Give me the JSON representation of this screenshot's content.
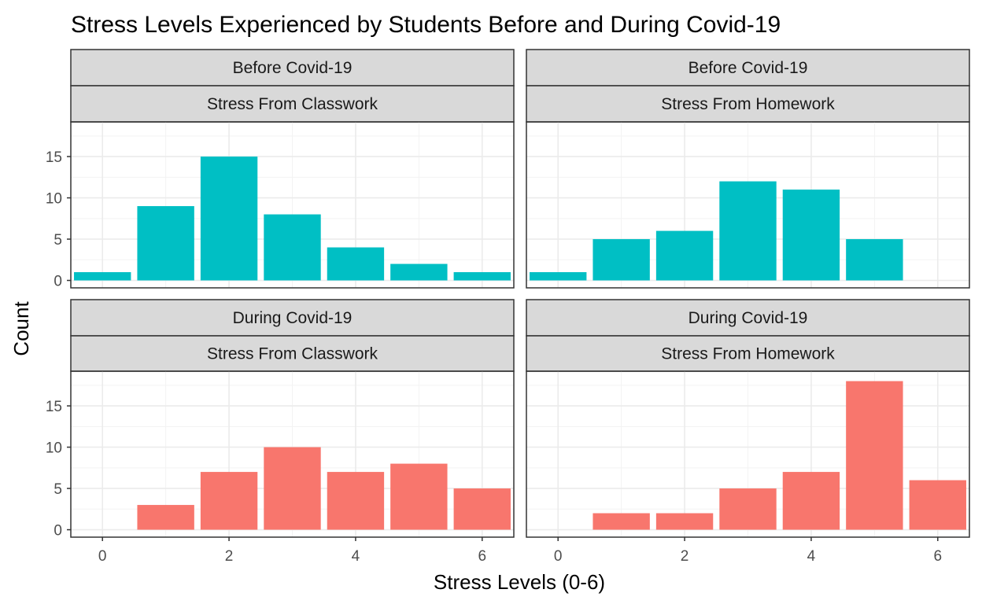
{
  "chart_data": {
    "type": "bar",
    "title": "Stress Levels Experienced by Students Before and During Covid-19",
    "xlabel": "Stress Levels (0-6)",
    "ylabel": "Count",
    "x_ticks": [
      0,
      2,
      4,
      6
    ],
    "y_ticks": [
      0,
      5,
      10,
      15
    ],
    "xlim": [
      -0.5,
      6.5
    ],
    "ylim": [
      0,
      18
    ],
    "grid": true,
    "legend": "none",
    "categories": [
      0,
      1,
      2,
      3,
      4,
      5,
      6
    ],
    "panels": [
      {
        "period": "Before Covid-19",
        "source": "Stress From Classwork",
        "color": "#00BFC4",
        "values": [
          1,
          9,
          15,
          8,
          4,
          2,
          1
        ]
      },
      {
        "period": "Before Covid-19",
        "source": "Stress From Homework",
        "color": "#00BFC4",
        "values": [
          1,
          5,
          6,
          12,
          11,
          5,
          0
        ]
      },
      {
        "period": "During Covid-19",
        "source": "Stress From Classwork",
        "color": "#F8766D",
        "values": [
          0,
          3,
          7,
          10,
          7,
          8,
          5
        ]
      },
      {
        "period": "During Covid-19",
        "source": "Stress From Homework",
        "color": "#F8766D",
        "values": [
          0,
          2,
          2,
          5,
          7,
          18,
          6
        ]
      }
    ]
  }
}
